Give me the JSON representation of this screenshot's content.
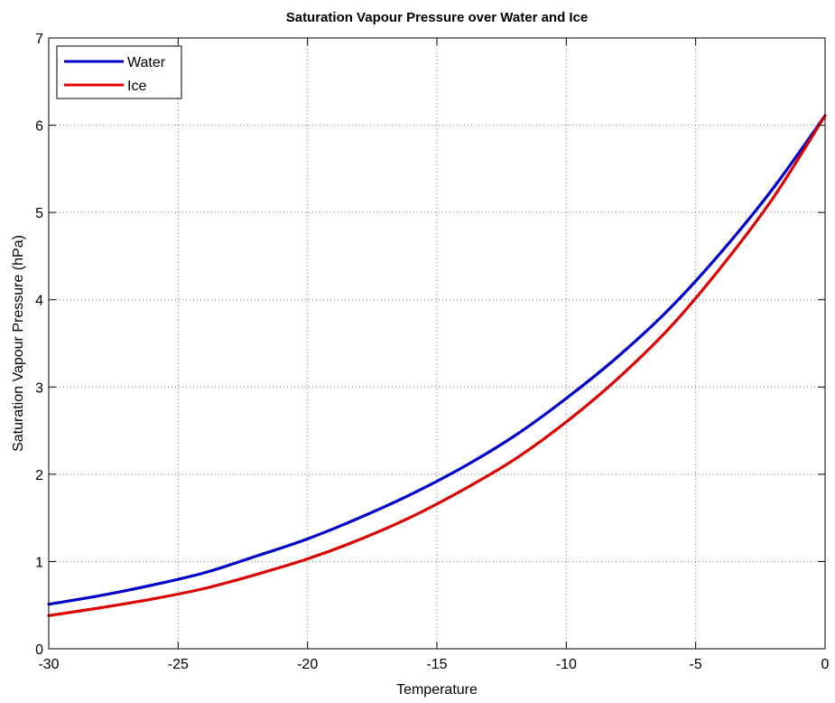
{
  "chart_data": {
    "type": "line",
    "title": "Saturation Vapour Pressure over Water and Ice",
    "xlabel": "Temperature",
    "ylabel": "Saturation Vapour Pressure (hPa)",
    "xlim": [
      -30,
      0
    ],
    "ylim": [
      0,
      7
    ],
    "xticks": [
      "-30",
      "-25",
      "-20",
      "-15",
      "-10",
      "-5",
      "0"
    ],
    "yticks": [
      "0",
      "1",
      "2",
      "3",
      "4",
      "5",
      "6",
      "7"
    ],
    "grid": true,
    "legend_position": "top-left",
    "x": [
      -30,
      -28,
      -26,
      -24,
      -22,
      -20,
      -18,
      -16,
      -14,
      -12,
      -10,
      -8,
      -6,
      -4,
      -2,
      0
    ],
    "series": [
      {
        "name": "Water",
        "color": "#0000cc",
        "values": [
          0.51,
          0.61,
          0.73,
          0.87,
          1.06,
          1.26,
          1.5,
          1.77,
          2.08,
          2.44,
          2.87,
          3.35,
          3.9,
          4.55,
          5.28,
          6.11
        ]
      },
      {
        "name": "Ice",
        "color": "#dd0000",
        "values": [
          0.38,
          0.47,
          0.57,
          0.69,
          0.85,
          1.03,
          1.25,
          1.51,
          1.82,
          2.17,
          2.6,
          3.1,
          3.68,
          4.38,
          5.17,
          6.11
        ]
      }
    ]
  }
}
